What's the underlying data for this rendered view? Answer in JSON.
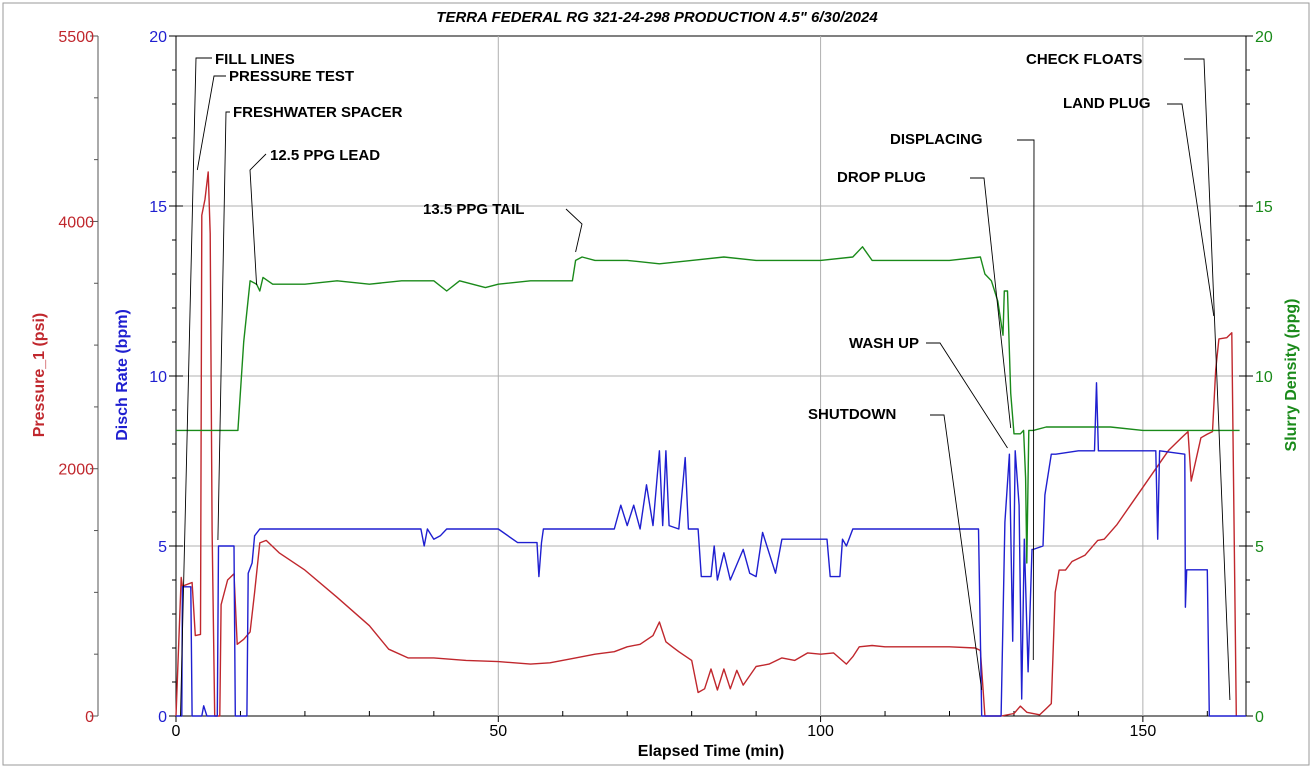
{
  "chart_data": {
    "type": "line",
    "title": "TERRA FEDERAL RG 321-24-298 PRODUCTION 4.5\" 6/30/2024",
    "xlabel": "Elapsed Time (min)",
    "xlim": [
      0,
      166
    ],
    "x_ticks": [
      "0",
      "50",
      "100",
      "150"
    ],
    "grid": true,
    "axes": {
      "pressure": {
        "label": "Pressure_1 (psi)",
        "lim": [
          0,
          5500
        ],
        "ticks": [
          "0",
          "2000",
          "4000",
          "5500"
        ],
        "color": "#c0272d"
      },
      "rate": {
        "label": "Disch Rate (bpm)",
        "lim": [
          0,
          20
        ],
        "ticks": [
          "0",
          "5",
          "10",
          "15",
          "20"
        ],
        "color": "#1f1fd0"
      },
      "density": {
        "label": "Slurry Density (ppg)",
        "lim": [
          0,
          20
        ],
        "ticks": [
          "0",
          "5",
          "10",
          "15",
          "20"
        ],
        "color": "#1a8a1a"
      }
    },
    "series": [
      {
        "name": "Pressure_1 (psi)",
        "axis": "pressure",
        "color": "#c0272d",
        "points": [
          [
            0,
            0
          ],
          [
            0.8,
            1120
          ],
          [
            1,
            1050
          ],
          [
            2.5,
            1080
          ],
          [
            3,
            650
          ],
          [
            3.8,
            660
          ],
          [
            4,
            4050
          ],
          [
            4.5,
            4180
          ],
          [
            5,
            4400
          ],
          [
            5.3,
            3900
          ],
          [
            5.6,
            1500
          ],
          [
            6,
            0
          ],
          [
            6.8,
            0
          ],
          [
            7,
            900
          ],
          [
            8,
            1100
          ],
          [
            9,
            1150
          ],
          [
            9.5,
            580
          ],
          [
            10.5,
            620
          ],
          [
            11.5,
            680
          ],
          [
            12.2,
            1000
          ],
          [
            13,
            1400
          ],
          [
            14,
            1420
          ],
          [
            16,
            1320
          ],
          [
            20,
            1180
          ],
          [
            25,
            960
          ],
          [
            30,
            730
          ],
          [
            33,
            540
          ],
          [
            36,
            470
          ],
          [
            40,
            470
          ],
          [
            45,
            450
          ],
          [
            50,
            440
          ],
          [
            55,
            420
          ],
          [
            58,
            430
          ],
          [
            62,
            470
          ],
          [
            65,
            500
          ],
          [
            68,
            520
          ],
          [
            70,
            560
          ],
          [
            72,
            580
          ],
          [
            74,
            650
          ],
          [
            75,
            760
          ],
          [
            76,
            600
          ],
          [
            77,
            560
          ],
          [
            78,
            520
          ],
          [
            80,
            450
          ],
          [
            81,
            190
          ],
          [
            82,
            220
          ],
          [
            83,
            380
          ],
          [
            84,
            210
          ],
          [
            85,
            380
          ],
          [
            86,
            220
          ],
          [
            87,
            370
          ],
          [
            88,
            250
          ],
          [
            90,
            400
          ],
          [
            92,
            420
          ],
          [
            94,
            470
          ],
          [
            96,
            450
          ],
          [
            98,
            510
          ],
          [
            100,
            500
          ],
          [
            102,
            510
          ],
          [
            104,
            420
          ],
          [
            105,
            480
          ],
          [
            106,
            560
          ],
          [
            108,
            570
          ],
          [
            110,
            560
          ],
          [
            115,
            560
          ],
          [
            120,
            560
          ],
          [
            124,
            550
          ],
          [
            124.8,
            530
          ],
          [
            125.5,
            0
          ],
          [
            126,
            0
          ],
          [
            128,
            0
          ],
          [
            130,
            20
          ],
          [
            131,
            80
          ],
          [
            132,
            30
          ],
          [
            134,
            10
          ],
          [
            135,
            60
          ],
          [
            135.8,
            100
          ],
          [
            136.4,
            1000
          ],
          [
            137,
            1180
          ],
          [
            138,
            1180
          ],
          [
            139,
            1250
          ],
          [
            141,
            1300
          ],
          [
            143,
            1420
          ],
          [
            144,
            1430
          ],
          [
            146,
            1550
          ],
          [
            148,
            1700
          ],
          [
            150,
            1850
          ],
          [
            152,
            2000
          ],
          [
            154,
            2150
          ],
          [
            156,
            2250
          ],
          [
            157,
            2300
          ],
          [
            157.5,
            1900
          ],
          [
            159,
            2250
          ],
          [
            160,
            2280
          ],
          [
            160.8,
            2300
          ],
          [
            161.3,
            2800
          ],
          [
            161.8,
            3050
          ],
          [
            163,
            3060
          ],
          [
            163.8,
            3100
          ],
          [
            164.5,
            0
          ]
        ]
      },
      {
        "name": "Disch Rate (bpm)",
        "axis": "rate",
        "color": "#1f1fd0",
        "points": [
          [
            0,
            0
          ],
          [
            0.9,
            0
          ],
          [
            1,
            3.8
          ],
          [
            2.3,
            3.8
          ],
          [
            2.5,
            0
          ],
          [
            4,
            0
          ],
          [
            4.3,
            0.3
          ],
          [
            4.8,
            0
          ],
          [
            6.4,
            0
          ],
          [
            6.6,
            5
          ],
          [
            9,
            5
          ],
          [
            9.2,
            0
          ],
          [
            11,
            0
          ],
          [
            11.2,
            4.2
          ],
          [
            11.8,
            4.5
          ],
          [
            12.2,
            5.3
          ],
          [
            13,
            5.5
          ],
          [
            18,
            5.5
          ],
          [
            22,
            5.5
          ],
          [
            30,
            5.5
          ],
          [
            38,
            5.5
          ],
          [
            38.5,
            5
          ],
          [
            39,
            5.5
          ],
          [
            40,
            5.2
          ],
          [
            41,
            5.3
          ],
          [
            42,
            5.5
          ],
          [
            50,
            5.5
          ],
          [
            53,
            5.1
          ],
          [
            56,
            5.1
          ],
          [
            56.3,
            4.1
          ],
          [
            56.7,
            5.1
          ],
          [
            57,
            5.5
          ],
          [
            68,
            5.5
          ],
          [
            69,
            6.2
          ],
          [
            70,
            5.6
          ],
          [
            71,
            6.2
          ],
          [
            72,
            5.5
          ],
          [
            73,
            6.8
          ],
          [
            74,
            5.6
          ],
          [
            75,
            7.8
          ],
          [
            75.5,
            5.6
          ],
          [
            76,
            7.8
          ],
          [
            76.5,
            5.6
          ],
          [
            78,
            5.5
          ],
          [
            79,
            7.6
          ],
          [
            79.5,
            5.5
          ],
          [
            81,
            5.5
          ],
          [
            81.5,
            4.1
          ],
          [
            83,
            4.1
          ],
          [
            83.5,
            5
          ],
          [
            84,
            4
          ],
          [
            85,
            4.8
          ],
          [
            86,
            4
          ],
          [
            88,
            4.9
          ],
          [
            89,
            4.2
          ],
          [
            90,
            4.1
          ],
          [
            91,
            5.4
          ],
          [
            93,
            4.2
          ],
          [
            94,
            5.2
          ],
          [
            96,
            5.2
          ],
          [
            98,
            5.2
          ],
          [
            101,
            5.2
          ],
          [
            101.5,
            4.1
          ],
          [
            103,
            4.1
          ],
          [
            103.4,
            5.2
          ],
          [
            104,
            5
          ],
          [
            105,
            5.5
          ],
          [
            123,
            5.5
          ],
          [
            124.5,
            5.5
          ],
          [
            125,
            0
          ],
          [
            128,
            0
          ],
          [
            128.6,
            5.7
          ],
          [
            129.3,
            7.7
          ],
          [
            129.8,
            2.2
          ],
          [
            130.2,
            7.8
          ],
          [
            130.8,
            6.2
          ],
          [
            131.2,
            0.5
          ],
          [
            131.6,
            5.2
          ],
          [
            132.2,
            1.3
          ],
          [
            132.8,
            4.9
          ],
          [
            133,
            4.9
          ],
          [
            134.5,
            5
          ],
          [
            134.8,
            6.5
          ],
          [
            135.8,
            7.7
          ],
          [
            136.5,
            7.7
          ],
          [
            140,
            7.8
          ],
          [
            142.5,
            7.8
          ],
          [
            142.8,
            9.8
          ],
          [
            143.1,
            7.8
          ],
          [
            150,
            7.8
          ],
          [
            152,
            7.8
          ],
          [
            152.3,
            5.2
          ],
          [
            152.6,
            7.8
          ],
          [
            156.5,
            7.7
          ],
          [
            156.6,
            3.2
          ],
          [
            156.8,
            4.3
          ],
          [
            160,
            4.3
          ],
          [
            160.3,
            0
          ],
          [
            166,
            0
          ]
        ]
      },
      {
        "name": "Slurry Density (ppg)",
        "axis": "density",
        "color": "#1a8a1a",
        "points": [
          [
            0,
            8.4
          ],
          [
            9.3,
            8.4
          ],
          [
            9.6,
            8.4
          ],
          [
            10.5,
            11
          ],
          [
            11.5,
            12.8
          ],
          [
            12.5,
            12.7
          ],
          [
            13,
            12.5
          ],
          [
            13.5,
            12.9
          ],
          [
            15,
            12.7
          ],
          [
            20,
            12.7
          ],
          [
            25,
            12.8
          ],
          [
            30,
            12.7
          ],
          [
            35,
            12.8
          ],
          [
            40,
            12.8
          ],
          [
            42,
            12.5
          ],
          [
            44,
            12.8
          ],
          [
            48,
            12.6
          ],
          [
            50,
            12.7
          ],
          [
            55,
            12.8
          ],
          [
            60,
            12.8
          ],
          [
            61.5,
            12.8
          ],
          [
            62,
            13.4
          ],
          [
            63,
            13.5
          ],
          [
            65,
            13.4
          ],
          [
            70,
            13.4
          ],
          [
            75,
            13.3
          ],
          [
            80,
            13.4
          ],
          [
            85,
            13.5
          ],
          [
            90,
            13.4
          ],
          [
            95,
            13.4
          ],
          [
            100,
            13.4
          ],
          [
            105,
            13.5
          ],
          [
            106.5,
            13.8
          ],
          [
            108,
            13.4
          ],
          [
            115,
            13.4
          ],
          [
            120,
            13.4
          ],
          [
            124.8,
            13.5
          ],
          [
            125.5,
            13
          ],
          [
            126.5,
            12.8
          ],
          [
            127.5,
            12.2
          ],
          [
            128.3,
            11.2
          ],
          [
            128.5,
            12.5
          ],
          [
            129,
            12.5
          ],
          [
            129.5,
            9.5
          ],
          [
            130,
            8.3
          ],
          [
            130.5,
            8.3
          ],
          [
            131,
            8.3
          ],
          [
            131.5,
            8.4
          ],
          [
            131.8,
            7
          ],
          [
            132,
            4.5
          ],
          [
            132.3,
            8.4
          ],
          [
            133,
            8.4
          ],
          [
            135,
            8.5
          ],
          [
            140,
            8.5
          ],
          [
            145,
            8.5
          ],
          [
            150,
            8.4
          ],
          [
            155,
            8.4
          ],
          [
            160,
            8.4
          ],
          [
            165,
            8.4
          ]
        ]
      }
    ],
    "annotations": [
      {
        "text": "FILL LINES",
        "x_min": 0.7
      },
      {
        "text": "PRESSURE TEST",
        "x_min": 3.3
      },
      {
        "text": "FRESHWATER SPACER",
        "x_min": 6.5
      },
      {
        "text": "12.5 PPG LEAD",
        "x_min": 12.5
      },
      {
        "text": "13.5 PPG TAIL",
        "x_min": 62
      },
      {
        "text": "DROP PLUG",
        "x_min": 129.5
      },
      {
        "text": "DISPLACING",
        "x_min": 133
      },
      {
        "text": "WASH UP",
        "x_min": 129
      },
      {
        "text": "SHUTDOWN",
        "x_min": 125
      },
      {
        "text": "LAND PLUG",
        "x_min": 161
      },
      {
        "text": "CHECK FLOATS",
        "x_min": 163.5
      }
    ]
  }
}
